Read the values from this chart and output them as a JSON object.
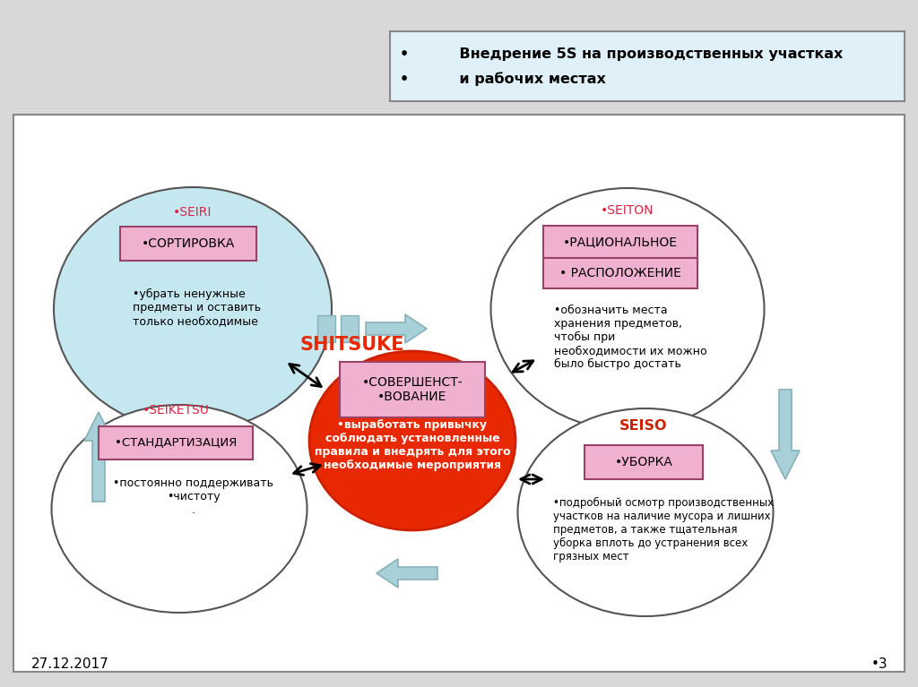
{
  "bg_color": "#d8d8d8",
  "main_bg": "#ffffff",
  "header_bg": "#dff0f8",
  "ellipse_tl_color": "#c5e8f0",
  "ellipse_tr_color": "#ffffff",
  "ellipse_bl_color": "#ffffff",
  "ellipse_br_color": "#ffffff",
  "ellipse_border": "#555555",
  "center_ellipse_color": "#e82800",
  "center_border": "#cc2000",
  "label_box_color": "#f0b0d0",
  "label_box_border": "#994466",
  "shitsuke_color": "#e82800",
  "date_text": "27.12.2017",
  "page_num": "•3",
  "seiri_label": "•SEIRI",
  "seiri_box": "•СОРТИРОВКА",
  "seiri_text": "•убрать ненужные\nпредметы и оставить\nтолько необходимые",
  "seiton_label": "•SEITON",
  "seiton_box1": "•РАЦИОНАЛЬНОЕ",
  "seiton_box2": "• РАСПОЛОЖЕНИЕ",
  "seiton_text": "•обозначить места\nхранения предметов,\nчтобы при\nнеобходимости их можно\nбыло быстро достать",
  "seiketsu_label": "•SEIKETSU",
  "seiketsu_box": "•СТАНДАРТИЗАЦИЯ",
  "seiketsu_text": "•постоянно поддерживать\n•чистоту\n.",
  "seiso_label": "SEISO",
  "seiso_box": "•УБОРКА",
  "seiso_text": "•подробный осмотр производственных\nучастков на наличие мусора и лишних\nпредметов, а также тщательная\nуборка вплоть до устранения всех\nгрязных мест",
  "center_box_text": "•СОВЕРШЕНСТ-\n•ВОВАНИЕ",
  "center_text": "•выработать привычку\nсоблюдать установленные\nправила и внедрять для этого\nнеобходимые мероприятия",
  "shitsuke_text": "SHITSUKE",
  "header_line1": "•          Внедрение 5S на производственных участках",
  "header_line2": "•          и рабочих местах",
  "arrow_color": "#a8d0d8",
  "arrow_edge": "#88b0b8"
}
